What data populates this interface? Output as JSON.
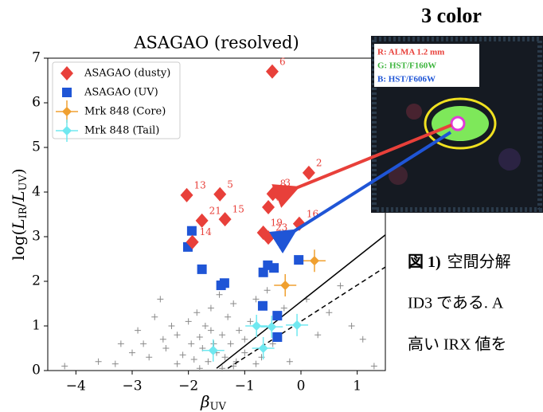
{
  "chart_data": {
    "type": "scatter",
    "title": "ASAGAO (resolved)",
    "x_label": {
      "main": "β",
      "sub": "UV"
    },
    "y_label": {
      "parts": [
        "log(",
        "L",
        "IR",
        "/",
        "L",
        "UV",
        ")"
      ]
    },
    "xlim": [
      -4.5,
      1.5
    ],
    "xticks": [
      {
        "value": -4,
        "label": "−4"
      },
      {
        "value": -3,
        "label": "−3"
      },
      {
        "value": -2,
        "label": "−2"
      },
      {
        "value": -1,
        "label": "−1"
      },
      0,
      1
    ],
    "ylim": [
      0,
      7
    ],
    "yticks": [
      0,
      1,
      2,
      3,
      4,
      5,
      6,
      7
    ],
    "legend": "upper left",
    "series": [
      {
        "name": "ASAGAO (dusty)",
        "color": "#e8403a",
        "marker": "diamond",
        "x": [
          -2.03,
          -1.44,
          -1.76,
          -1.35,
          -1.93,
          -0.5,
          -0.42,
          -0.58,
          -0.51,
          0.14,
          -0.03,
          -0.67,
          -0.58
        ],
        "y": [
          3.93,
          3.95,
          3.36,
          3.39,
          2.88,
          3.96,
          3.98,
          3.66,
          6.7,
          4.43,
          3.29,
          3.09,
          2.98
        ],
        "labels": [
          "13",
          "5",
          "21",
          "15",
          "14",
          "8",
          "3",
          "12",
          "6",
          "2",
          "16",
          "19",
          "23"
        ]
      },
      {
        "name": "ASAGAO (UV)",
        "color": "#1f55d6",
        "marker": "square",
        "x": [
          -2.01,
          -1.94,
          -1.76,
          -1.42,
          -1.36,
          -0.67,
          -0.59,
          -0.48,
          -0.04,
          -0.68,
          -0.42,
          -0.42
        ],
        "y": [
          2.77,
          3.13,
          2.27,
          1.91,
          1.96,
          2.2,
          2.36,
          2.3,
          2.48,
          1.45,
          1.23,
          0.75
        ]
      },
      {
        "name": "Mrk 848 (Core)",
        "color": "#f0a030",
        "marker": "plus",
        "x": [
          0.24,
          -0.28
        ],
        "y": [
          2.46,
          1.91
        ]
      },
      {
        "name": "Mrk 848 (Tail)",
        "color": "#70e8f0",
        "marker": "plus",
        "x": [
          -1.56,
          -0.67,
          -0.52,
          -0.07,
          -0.79
        ],
        "y": [
          0.45,
          0.5,
          0.98,
          1.02,
          1.0
        ]
      },
      {
        "color": "#8a8a8a",
        "marker": "cross",
        "x": [
          -4.2,
          -3.6,
          -3.3,
          -3.0,
          -2.8,
          -2.7,
          -2.5,
          -2.4,
          -2.3,
          -2.2,
          -2.1,
          -2.0,
          -1.95,
          -1.9,
          -1.85,
          -1.8,
          -1.75,
          -1.7,
          -1.65,
          -1.6,
          -1.55,
          -1.5,
          -1.45,
          -1.4,
          -1.35,
          -1.3,
          -1.25,
          -1.2,
          -1.1,
          -1.0,
          -0.9,
          -0.8,
          -0.7,
          -0.6,
          -0.5,
          -0.3,
          -0.2,
          0.1,
          0.3,
          0.5,
          0.7,
          0.9,
          1.1,
          1.3,
          -2.6,
          -2.2,
          -1.8,
          -1.6,
          -1.4,
          -1.2,
          -1.0,
          -0.8,
          -2.9,
          -3.2,
          -2.45,
          -1.15
        ],
        "y": [
          0.1,
          0.2,
          0.15,
          0.4,
          0.6,
          0.3,
          1.6,
          0.5,
          1.0,
          0.8,
          0.35,
          1.1,
          0.6,
          0.25,
          1.3,
          0.75,
          0.5,
          1.0,
          0.2,
          0.9,
          0.6,
          0.4,
          1.7,
          0.8,
          0.3,
          1.2,
          0.6,
          1.5,
          0.9,
          0.4,
          1.1,
          1.6,
          0.3,
          1.8,
          0.6,
          1.4,
          0.2,
          1.6,
          0.8,
          1.3,
          1.9,
          1.0,
          0.7,
          0.1,
          1.2,
          0.15,
          0.05,
          1.4,
          0.05,
          0.1,
          0.7,
          0.15,
          0.9,
          0.6,
          0.7,
          0.2
        ]
      },
      {
        "type": "line",
        "color": "#000000",
        "style": "solid",
        "x": [
          -1.5,
          1.5
        ],
        "y": [
          0.05,
          3.04
        ]
      },
      {
        "type": "line",
        "color": "#000000",
        "style": "dashed",
        "x": [
          -1.3,
          1.5
        ],
        "y": [
          0.05,
          2.32
        ]
      }
    ]
  },
  "inset": {
    "title": "3 color",
    "legend": [
      "R: ALMA 1.2 mm",
      "G: HST/F160W",
      "B: HST/F606W"
    ]
  },
  "caption": {
    "lines": [
      [
        "図 1)",
        "空間分解"
      ],
      [
        "ID3 である. A"
      ],
      [
        "高い IRX 値を"
      ]
    ]
  }
}
